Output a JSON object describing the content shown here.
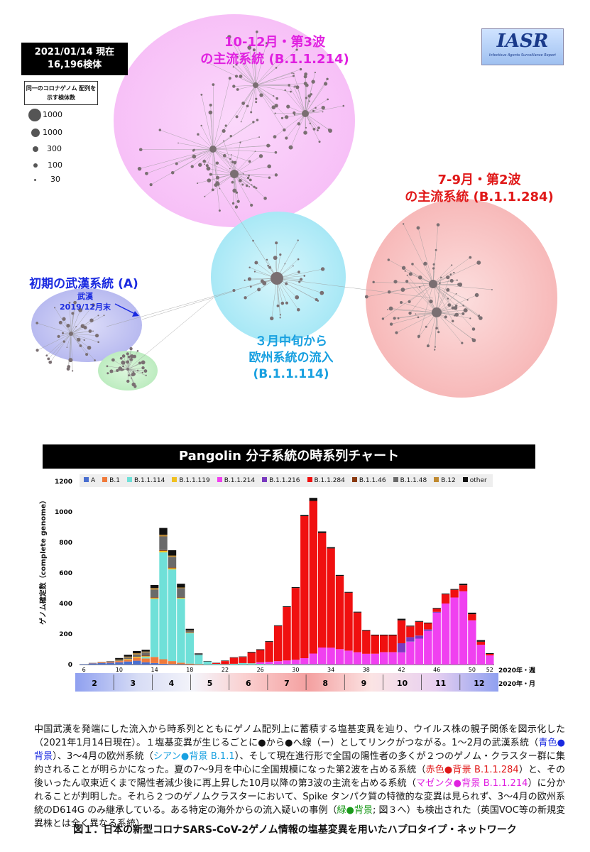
{
  "header": {
    "date_line1": "2021/01/14 現在",
    "date_line2": "16,196検体",
    "size_legend_title": "同一のコロナゲノム 配列を示す検体数",
    "size_legend": [
      "1000",
      "1000",
      "300",
      "100",
      "30"
    ],
    "logo_text": "IASR",
    "logo_subtext": "Infectious Agents Surveillance Report"
  },
  "clusters": {
    "wave3_line1": "10-12月・第3波",
    "wave3_line2": "の主流系統 (B.1.1.214)",
    "wave2_line1": "7-9月・第2波",
    "wave2_line2": "の主流系統 (B.1.1.284)",
    "wuhan_title": "初期の武漢系統 (A)",
    "wuhan_note_1": "武漢",
    "wuhan_note_2": "2019/12月末",
    "europe_line1": "３月中旬から",
    "europe_line2": "欧州系統の流入",
    "europe_line3": "(B.1.1.114)",
    "colors": {
      "wave3": "#f7c8f7",
      "wave2": "#f9c8c8",
      "wuhan": "#c6c8f0",
      "europe": "#bfeef7",
      "green": "#c9f0c9"
    }
  },
  "chart_title": "Pangolin 分子系統の時系列チャート",
  "chart_data": {
    "type": "bar",
    "stacked": true,
    "ylabel": "ゲノム確定数（complete genome）",
    "ylim": [
      0,
      1200
    ],
    "yticks": [
      0,
      200,
      400,
      600,
      800,
      1000,
      1200
    ],
    "week_label": "2020年・週",
    "month_label": "2020年・月",
    "week_ticks": [
      "6",
      "10",
      "14",
      "18",
      "22",
      "26",
      "30",
      "34",
      "38",
      "42",
      "46",
      "50",
      "52"
    ],
    "months": [
      "2",
      "3",
      "4",
      "5",
      "6",
      "7",
      "8",
      "9",
      "10",
      "11",
      "12"
    ],
    "legend": [
      {
        "name": "A",
        "color": "#4a6fd0"
      },
      {
        "name": "B.1",
        "color": "#f07a3a"
      },
      {
        "name": "B.1.1.114",
        "color": "#6fe0d8"
      },
      {
        "name": "B.1.1.119",
        "color": "#f0c020"
      },
      {
        "name": "B.1.1.214",
        "color": "#f040f0"
      },
      {
        "name": "B.1.1.216",
        "color": "#7a3ac0"
      },
      {
        "name": "B.1.1.284",
        "color": "#f01010"
      },
      {
        "name": "B.1.1.46",
        "color": "#8a3a10"
      },
      {
        "name": "B.1.1.48",
        "color": "#6a6a6a"
      },
      {
        "name": "B.12",
        "color": "#c08a30"
      },
      {
        "name": "other",
        "color": "#111111"
      }
    ],
    "weeks": [
      6,
      7,
      8,
      9,
      10,
      11,
      12,
      13,
      14,
      15,
      16,
      17,
      18,
      19,
      20,
      21,
      22,
      23,
      24,
      25,
      26,
      27,
      28,
      29,
      30,
      31,
      32,
      33,
      34,
      35,
      36,
      37,
      38,
      39,
      40,
      41,
      42,
      43,
      44,
      45,
      46,
      47,
      48,
      49,
      50,
      51,
      52
    ],
    "series": [
      {
        "name": "A",
        "values": [
          3,
          8,
          10,
          12,
          15,
          20,
          25,
          15,
          10,
          5,
          3,
          2,
          1,
          0,
          0,
          0,
          0,
          0,
          0,
          0,
          0,
          0,
          0,
          0,
          0,
          0,
          0,
          0,
          0,
          0,
          0,
          0,
          0,
          0,
          0,
          0,
          0,
          0,
          0,
          0,
          0,
          0,
          0,
          0,
          0,
          0,
          0
        ]
      },
      {
        "name": "B.1",
        "values": [
          0,
          2,
          4,
          6,
          8,
          12,
          20,
          25,
          40,
          30,
          20,
          10,
          5,
          3,
          0,
          0,
          0,
          0,
          0,
          0,
          0,
          0,
          0,
          0,
          0,
          0,
          0,
          0,
          0,
          0,
          0,
          0,
          0,
          0,
          0,
          0,
          0,
          0,
          0,
          0,
          0,
          0,
          0,
          0,
          0,
          0,
          0
        ]
      },
      {
        "name": "B.1.1.114",
        "values": [
          0,
          0,
          0,
          0,
          0,
          0,
          0,
          10,
          380,
          700,
          600,
          420,
          200,
          60,
          20,
          5,
          3,
          5,
          10,
          8,
          5,
          3,
          2,
          2,
          2,
          2,
          2,
          2,
          1,
          1,
          1,
          1,
          1,
          1,
          1,
          1,
          0,
          0,
          0,
          0,
          0,
          0,
          0,
          0,
          0,
          0,
          0
        ]
      },
      {
        "name": "B.1.1.119",
        "values": [
          0,
          0,
          0,
          0,
          2,
          4,
          6,
          5,
          6,
          10,
          8,
          5,
          3,
          0,
          0,
          0,
          0,
          0,
          0,
          0,
          0,
          0,
          0,
          0,
          0,
          0,
          0,
          0,
          0,
          0,
          0,
          0,
          0,
          0,
          0,
          0,
          0,
          0,
          0,
          0,
          0,
          0,
          0,
          0,
          0,
          0,
          0
        ]
      },
      {
        "name": "B.1.1.214",
        "values": [
          0,
          0,
          0,
          0,
          0,
          0,
          0,
          0,
          0,
          0,
          0,
          0,
          0,
          0,
          0,
          0,
          0,
          0,
          0,
          0,
          10,
          15,
          20,
          25,
          30,
          40,
          70,
          110,
          110,
          100,
          90,
          80,
          70,
          70,
          80,
          80,
          80,
          150,
          170,
          220,
          340,
          400,
          440,
          480,
          290,
          130,
          60
        ]
      },
      {
        "name": "B.1.1.216",
        "values": [
          0,
          0,
          0,
          0,
          0,
          0,
          0,
          0,
          0,
          0,
          0,
          0,
          0,
          0,
          0,
          0,
          0,
          0,
          0,
          0,
          0,
          0,
          0,
          0,
          0,
          0,
          0,
          0,
          0,
          0,
          0,
          0,
          0,
          0,
          0,
          0,
          60,
          30,
          20,
          10,
          5,
          0,
          0,
          0,
          0,
          0,
          0
        ]
      },
      {
        "name": "B.1.1.284",
        "values": [
          0,
          0,
          0,
          0,
          0,
          0,
          0,
          0,
          0,
          0,
          0,
          0,
          0,
          0,
          0,
          5,
          20,
          40,
          40,
          70,
          80,
          130,
          230,
          350,
          470,
          930,
          1000,
          750,
          650,
          480,
          380,
          260,
          150,
          120,
          110,
          110,
          150,
          70,
          90,
          40,
          20,
          60,
          50,
          40,
          40,
          20,
          10
        ]
      },
      {
        "name": "B.1.1.46",
        "values": [
          0,
          0,
          0,
          0,
          0,
          0,
          0,
          5,
          5,
          5,
          5,
          3,
          2,
          0,
          0,
          0,
          0,
          0,
          0,
          0,
          0,
          0,
          0,
          0,
          0,
          0,
          0,
          0,
          0,
          0,
          0,
          0,
          0,
          0,
          0,
          0,
          0,
          0,
          0,
          0,
          0,
          0,
          0,
          0,
          0,
          0,
          0
        ]
      },
      {
        "name": "B.1.1.48",
        "values": [
          0,
          0,
          0,
          0,
          5,
          10,
          15,
          20,
          50,
          90,
          70,
          60,
          10,
          5,
          0,
          0,
          0,
          0,
          0,
          0,
          0,
          0,
          0,
          0,
          0,
          0,
          0,
          0,
          0,
          0,
          0,
          0,
          0,
          0,
          0,
          0,
          0,
          0,
          0,
          0,
          0,
          0,
          0,
          0,
          0,
          0,
          0
        ]
      },
      {
        "name": "B.12",
        "values": [
          0,
          0,
          0,
          0,
          3,
          6,
          8,
          5,
          10,
          10,
          8,
          5,
          3,
          0,
          0,
          0,
          0,
          0,
          0,
          0,
          0,
          0,
          0,
          0,
          0,
          0,
          0,
          0,
          0,
          0,
          0,
          0,
          0,
          0,
          0,
          0,
          0,
          0,
          0,
          0,
          0,
          0,
          0,
          0,
          0,
          0,
          0
        ]
      },
      {
        "name": "other",
        "values": [
          0,
          1,
          2,
          3,
          10,
          12,
          15,
          12,
          20,
          45,
          35,
          25,
          10,
          5,
          3,
          2,
          3,
          3,
          3,
          5,
          5,
          5,
          5,
          5,
          5,
          8,
          20,
          10,
          8,
          6,
          5,
          5,
          5,
          5,
          5,
          5,
          10,
          5,
          5,
          5,
          5,
          5,
          5,
          10,
          10,
          10,
          5
        ]
      }
    ]
  },
  "caption": {
    "p1": "中国武漢を発端にした流入から時系列とともにゲノム配列上に蓄積する塩基変異を辿り、ウイルス株の親子関係を図示化した（2021年1月14日現在）。１塩基変異が生じるごとに●から●へ線（ー）としてリンクがつながる。1〜2月の武漢系統（",
    "blue": "青色●背景",
    "p2": "）、3〜4月の欧州系統（",
    "cyan": "シアン●背景 B.1.1",
    "p3": "）、そして現在進行形で全国の陽性者の多くが２つのゲノム・クラスター群に集約されることが明らかになった。夏の7〜9月を中心に全国規模になった第2波を占める系統（",
    "red": "赤色●背景 B.1.1.284",
    "p4": "）と、その後いったん収束近くまで陽性者減少後に再上昇した10月以降の第3波の主流を占める系統（",
    "magenta": "マゼンタ●背景 B.1.1.214",
    "p5": "）に分かれることが判明した。それら２つのゲノムクラスターにおいて、Spike タンパク質の特徴的な変異は見られず、3〜4月の欧州系統のD614G のみ継承している。ある特定の海外からの流入疑いの事例（",
    "green": "緑●背景",
    "p6": "; 図３へ）も検出された（英国VOC等の新規変異株とは全く異なる系統）"
  },
  "figure_caption": "図１．日本の新型コロナSARS-CoV-2ゲノム情報の塩基変異を用いたハプロタイプ・ネットワーク"
}
